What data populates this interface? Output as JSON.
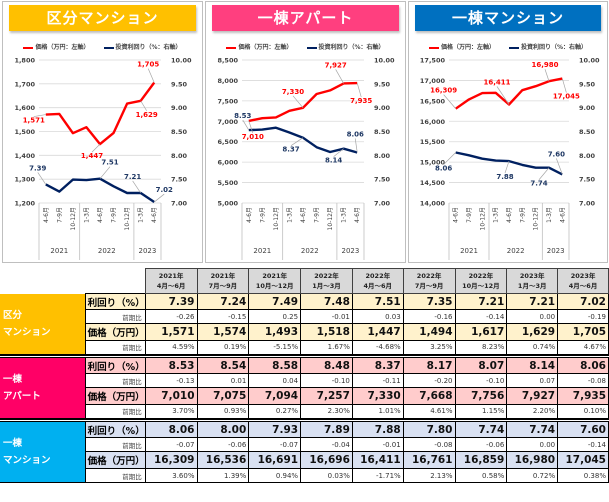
{
  "colors": {
    "price_line": "#FF0000",
    "yield_line": "#002060",
    "kubun": "#FFC000",
    "kubun_light": "#FFF2CC",
    "apart": "#FF0066",
    "apart_light": "#FFCCCC",
    "mansion": "#00B0F0",
    "mansion_light": "#D9E1F2",
    "banner_apart": "#FF3F7F",
    "banner_mansion": "#0070C0"
  },
  "legend": {
    "price": "価格（万円：左軸）",
    "yield": "投資利回り（%：右軸）"
  },
  "chart_data": [
    {
      "type": "line",
      "title": "区分マンション",
      "categories": [
        "4-6月",
        "7-9月",
        "10-12月",
        "1-3月",
        "4-6月",
        "7-9月",
        "10-12月",
        "1-3月",
        "4-6月"
      ],
      "year_groups": [
        {
          "label": "2021",
          "span": 3
        },
        {
          "label": "2022",
          "span": 4
        },
        {
          "label": "2023",
          "span": 2
        }
      ],
      "left_axis": {
        "ylim": [
          1200,
          1800
        ],
        "ticks": [
          "1,200",
          "1,300",
          "1,400",
          "1,500",
          "1,600",
          "1,700",
          "1,800"
        ]
      },
      "right_axis": {
        "ylim": [
          7.0,
          10.0
        ],
        "ticks": [
          "7.00",
          "7.50",
          "8.00",
          "8.50",
          "9.00",
          "9.50",
          "10.00"
        ]
      },
      "series": [
        {
          "name": "価格（万円：左軸）",
          "axis": "left",
          "values": [
            1571,
            1574,
            1493,
            1518,
            1447,
            1494,
            1617,
            1629,
            1705
          ]
        },
        {
          "name": "投資利回り（%：右軸）",
          "axis": "right",
          "values": [
            7.39,
            7.24,
            7.49,
            7.48,
            7.51,
            7.35,
            7.21,
            7.21,
            7.02
          ]
        }
      ],
      "annotations": [
        {
          "series": 0,
          "index": 0,
          "text": "1,571"
        },
        {
          "series": 0,
          "index": 4,
          "text": "1,447"
        },
        {
          "series": 0,
          "index": 7,
          "text": "1,629"
        },
        {
          "series": 0,
          "index": 8,
          "text": "1,705"
        },
        {
          "series": 1,
          "index": 0,
          "text": "7.39"
        },
        {
          "series": 1,
          "index": 4,
          "text": "7.51"
        },
        {
          "series": 1,
          "index": 7,
          "text": "7.21"
        },
        {
          "series": 1,
          "index": 8,
          "text": "7.02"
        }
      ]
    },
    {
      "type": "line",
      "title": "一棟アパート",
      "categories": [
        "4-6月",
        "7-9月",
        "10-12月",
        "1-3月",
        "4-6月",
        "7-9月",
        "10-12月",
        "1-3月",
        "4-6月"
      ],
      "year_groups": [
        {
          "label": "2021",
          "span": 3
        },
        {
          "label": "2022",
          "span": 4
        },
        {
          "label": "2023",
          "span": 2
        }
      ],
      "left_axis": {
        "ylim": [
          5000,
          8500
        ],
        "ticks": [
          "5,000",
          "5,500",
          "6,000",
          "6,500",
          "7,000",
          "7,500",
          "8,000",
          "8,500"
        ]
      },
      "right_axis": {
        "ylim": [
          7.0,
          10.0
        ],
        "ticks": [
          "7.00",
          "7.50",
          "8.00",
          "8.50",
          "9.00",
          "9.50",
          "10.00"
        ]
      },
      "series": [
        {
          "name": "価格（万円：左軸）",
          "axis": "left",
          "values": [
            7010,
            7075,
            7094,
            7257,
            7330,
            7668,
            7756,
            7927,
            7935
          ]
        },
        {
          "name": "投資利回り（%：右軸）",
          "axis": "right",
          "values": [
            8.53,
            8.54,
            8.58,
            8.48,
            8.37,
            8.17,
            8.07,
            8.14,
            8.06
          ]
        }
      ],
      "annotations": [
        {
          "series": 0,
          "index": 0,
          "text": "7,010"
        },
        {
          "series": 0,
          "index": 4,
          "text": "7,330"
        },
        {
          "series": 0,
          "index": 7,
          "text": "7,927"
        },
        {
          "series": 0,
          "index": 8,
          "text": "7,935"
        },
        {
          "series": 1,
          "index": 0,
          "text": "8.53"
        },
        {
          "series": 1,
          "index": 4,
          "text": "8.37"
        },
        {
          "series": 1,
          "index": 7,
          "text": "8.14"
        },
        {
          "series": 1,
          "index": 8,
          "text": "8.06"
        }
      ]
    },
    {
      "type": "line",
      "title": "一棟マンション",
      "categories": [
        "4-6月",
        "7-9月",
        "10-12月",
        "1-3月",
        "4-6月",
        "7-9月",
        "10-12月",
        "1-3月",
        "4-6月"
      ],
      "year_groups": [
        {
          "label": "2021",
          "span": 3
        },
        {
          "label": "2022",
          "span": 4
        },
        {
          "label": "2023",
          "span": 2
        }
      ],
      "left_axis": {
        "ylim": [
          14000,
          17500
        ],
        "ticks": [
          "14,000",
          "14,500",
          "15,000",
          "15,500",
          "16,000",
          "16,500",
          "17,000",
          "17,500"
        ]
      },
      "right_axis": {
        "ylim": [
          7.0,
          10.0
        ],
        "ticks": [
          "7.00",
          "7.50",
          "8.00",
          "8.50",
          "9.00",
          "9.50",
          "10.00"
        ]
      },
      "series": [
        {
          "name": "価格（万円：左軸）",
          "axis": "left",
          "values": [
            16309,
            16536,
            16691,
            16696,
            16411,
            16761,
            16859,
            16980,
            17045
          ]
        },
        {
          "name": "投資利回り（%：右軸）",
          "axis": "right",
          "values": [
            8.06,
            8.0,
            7.93,
            7.89,
            7.88,
            7.8,
            7.74,
            7.74,
            7.6
          ]
        }
      ],
      "annotations": [
        {
          "series": 0,
          "index": 0,
          "text": "16,309"
        },
        {
          "series": 0,
          "index": 4,
          "text": "16,411"
        },
        {
          "series": 0,
          "index": 7,
          "text": "16,980"
        },
        {
          "series": 0,
          "index": 8,
          "text": "17,045"
        },
        {
          "series": 1,
          "index": 0,
          "text": "8.06"
        },
        {
          "series": 1,
          "index": 4,
          "text": "7.88"
        },
        {
          "series": 1,
          "index": 7,
          "text": "7.74"
        },
        {
          "series": 1,
          "index": 8,
          "text": "7.60"
        }
      ]
    }
  ],
  "table": {
    "periods": [
      {
        "year": "2021年",
        "months": "4月～6月"
      },
      {
        "year": "2021年",
        "months": "7月～9月"
      },
      {
        "year": "2021年",
        "months": "10月～12月"
      },
      {
        "year": "2022年",
        "months": "1月～3月"
      },
      {
        "year": "2022年",
        "months": "4月～6月"
      },
      {
        "year": "2022年",
        "months": "7月～9月"
      },
      {
        "year": "2022年",
        "months": "10月～12月"
      },
      {
        "year": "2023年",
        "months": "1月～3月"
      },
      {
        "year": "2023年",
        "months": "4月～6月"
      }
    ],
    "sections": [
      {
        "label_line1": "区分",
        "label_line2": "マンション",
        "yield_label": "利回り（%）",
        "yield": [
          "7.39",
          "7.24",
          "7.49",
          "7.48",
          "7.51",
          "7.35",
          "7.21",
          "7.21",
          "7.02"
        ],
        "yield_change_label": "前期比",
        "yield_change": [
          "-0.26",
          "-0.15",
          "0.25",
          "-0.01",
          "0.03",
          "-0.16",
          "-0.14",
          "0.00",
          "-0.19"
        ],
        "price_label": "価格（万円）",
        "price": [
          "1,571",
          "1,574",
          "1,493",
          "1,518",
          "1,447",
          "1,494",
          "1,617",
          "1,629",
          "1,705"
        ],
        "price_change_label": "前期比",
        "price_change": [
          "4.59%",
          "0.19%",
          "-5.15%",
          "1.67%",
          "-4.68%",
          "3.25%",
          "8.23%",
          "0.74%",
          "4.67%"
        ]
      },
      {
        "label_line1": "一棟",
        "label_line2": "アパート",
        "yield_label": "利回り（%）",
        "yield": [
          "8.53",
          "8.54",
          "8.58",
          "8.48",
          "8.37",
          "8.17",
          "8.07",
          "8.14",
          "8.06"
        ],
        "yield_change_label": "前期比",
        "yield_change": [
          "-0.13",
          "0.01",
          "0.04",
          "-0.10",
          "-0.11",
          "-0.20",
          "-0.10",
          "0.07",
          "-0.08"
        ],
        "price_label": "価格（万円）",
        "price": [
          "7,010",
          "7,075",
          "7,094",
          "7,257",
          "7,330",
          "7,668",
          "7,756",
          "7,927",
          "7,935"
        ],
        "price_change_label": "前期比",
        "price_change": [
          "3.70%",
          "0.93%",
          "0.27%",
          "2.30%",
          "1.01%",
          "4.61%",
          "1.15%",
          "2.20%",
          "0.10%"
        ]
      },
      {
        "label_line1": "一棟",
        "label_line2": "マンション",
        "yield_label": "利回り（%）",
        "yield": [
          "8.06",
          "8.00",
          "7.93",
          "7.89",
          "7.88",
          "7.80",
          "7.74",
          "7.74",
          "7.60"
        ],
        "yield_change_label": "前期比",
        "yield_change": [
          "-0.07",
          "-0.06",
          "-0.07",
          "-0.04",
          "-0.01",
          "-0.08",
          "-0.06",
          "0.00",
          "-0.14"
        ],
        "price_label": "価格（万円）",
        "price": [
          "16,309",
          "16,536",
          "16,691",
          "16,696",
          "16,411",
          "16,761",
          "16,859",
          "16,980",
          "17,045"
        ],
        "price_change_label": "前期比",
        "price_change": [
          "3.60%",
          "1.39%",
          "0.94%",
          "0.03%",
          "-1.71%",
          "2.13%",
          "0.58%",
          "0.72%",
          "0.38%"
        ]
      }
    ]
  }
}
